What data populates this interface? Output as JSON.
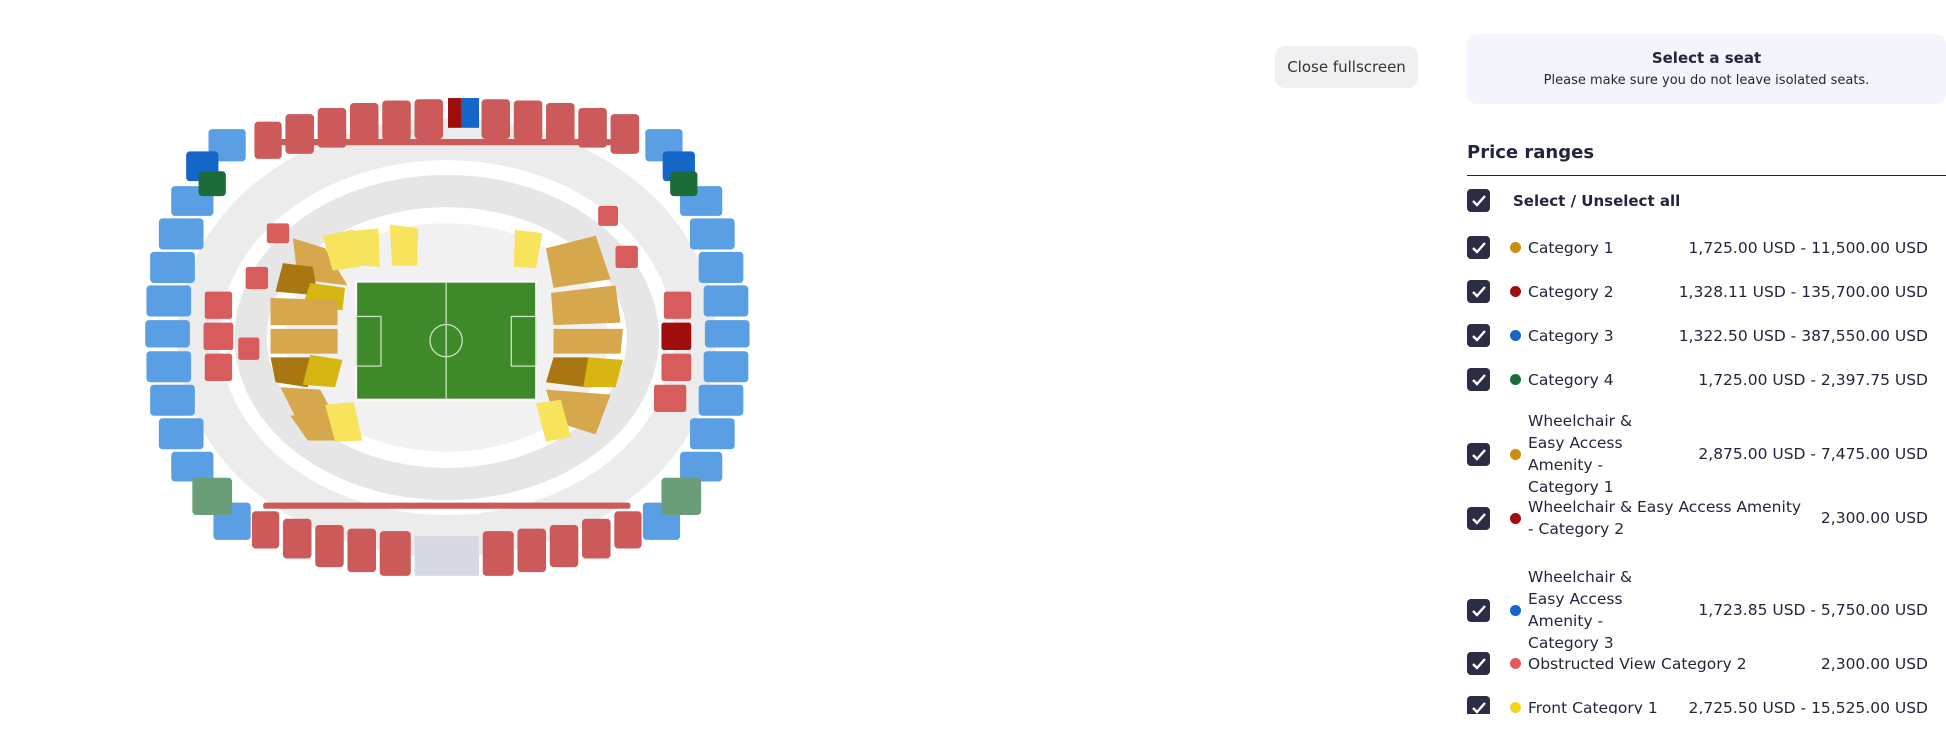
{
  "button": "Close fullscreen",
  "notice": {
    "title": "Select a seat",
    "subtitle": "Please make sure you do not leave isolated seats."
  },
  "price_ranges": {
    "title": "Price ranges",
    "select_all": "Select / Unselect all",
    "items": [
      {
        "name": "Category 1",
        "color": "#c9900f",
        "range": "1,725.00 USD - 11,500.00 USD"
      },
      {
        "name": "Category 2",
        "color": "#a00d0d",
        "range": "1,328.11 USD - 135,700.00 USD"
      },
      {
        "name": "Category 3",
        "color": "#1466c8",
        "range": "1,322.50 USD - 387,550.00 USD"
      },
      {
        "name": "Category 4",
        "color": "#1e6b3a",
        "range": "1,725.00 USD - 2,397.75 USD"
      },
      {
        "name": "Wheelchair & Easy Access Amenity - Category 1",
        "color": "#c9900f",
        "range": "2,875.00 USD - 7,475.00 USD"
      },
      {
        "name": "Wheelchair & Easy Access Amenity - Category 2",
        "color": "#a00d0d",
        "range": "2,300.00 USD"
      },
      {
        "name": "Wheelchair & Easy Access Amenity - Category 3",
        "color": "#1466c8",
        "range": "1,723.85 USD - 5,750.00 USD"
      },
      {
        "name": "Obstructed View Category 2",
        "color": "#e85a5a",
        "range": "2,300.00 USD"
      },
      {
        "name": "Front Category 1",
        "color": "#f3d417",
        "range": "2,725.50 USD - 15,525.00 USD"
      }
    ]
  }
}
